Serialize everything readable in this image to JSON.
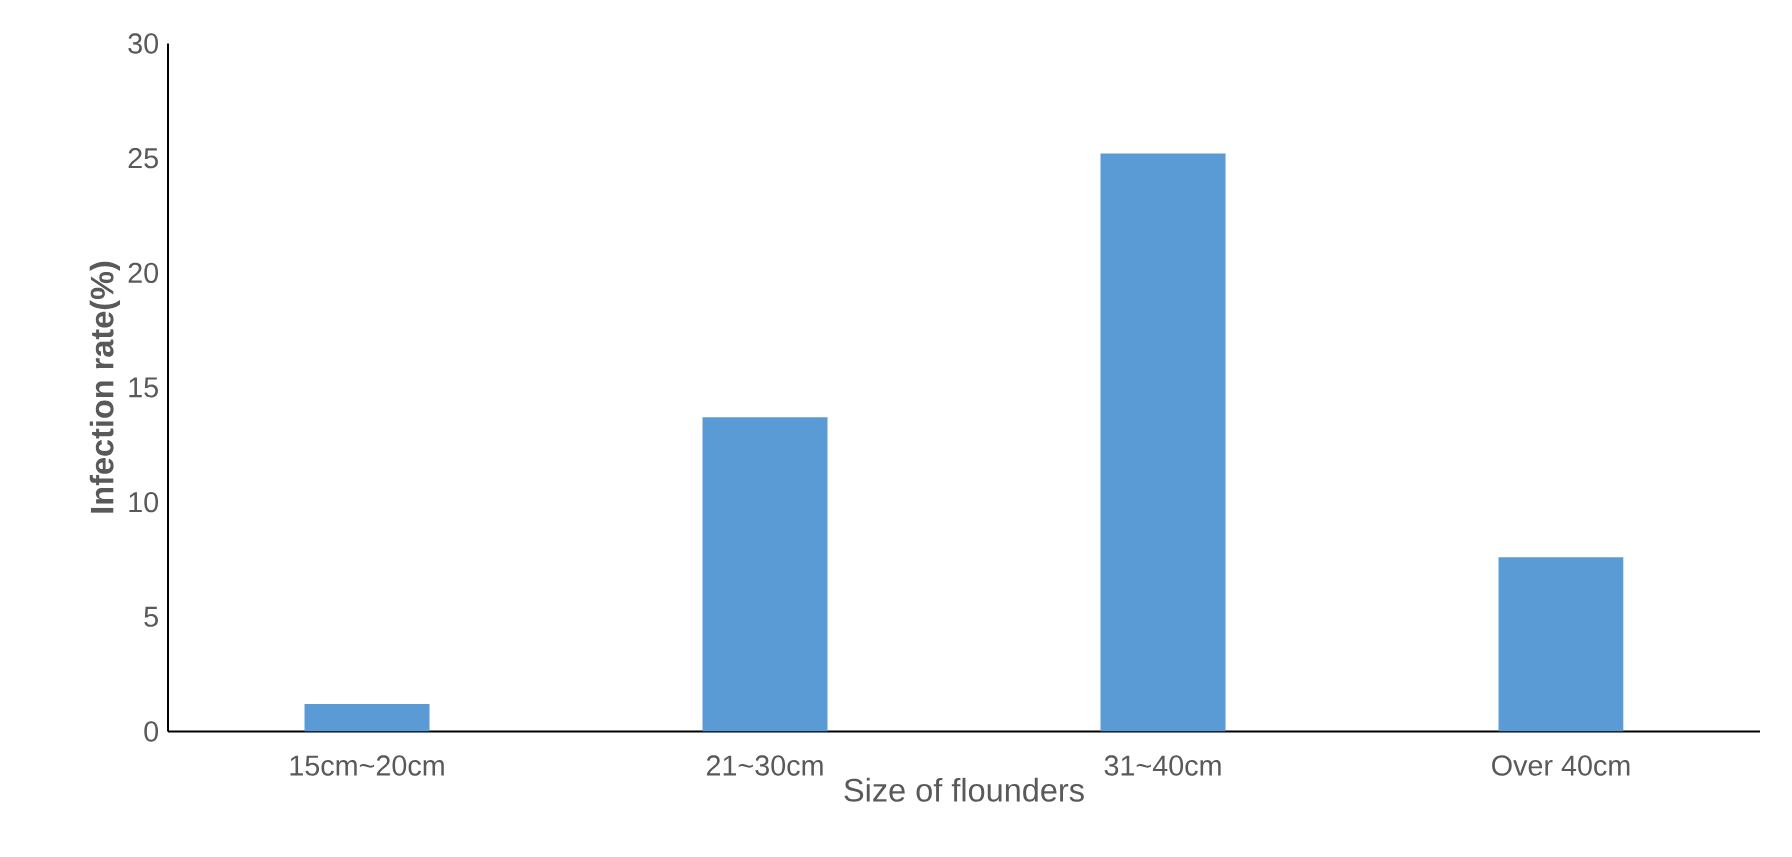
{
  "chart_data": {
    "type": "bar",
    "xlabel": "Size of flounders",
    "ylabel": "Infection rate(%)",
    "categories": [
      "15cm~20cm",
      "21~30cm",
      "31~40cm",
      "Over 40cm"
    ],
    "values": [
      1.2,
      13.7,
      25.2,
      7.6
    ],
    "color": "#5b9bd5",
    "ylim": [
      0,
      30
    ],
    "yticks": [
      0,
      5,
      10,
      15,
      20,
      25,
      30
    ],
    "grid": false
  }
}
